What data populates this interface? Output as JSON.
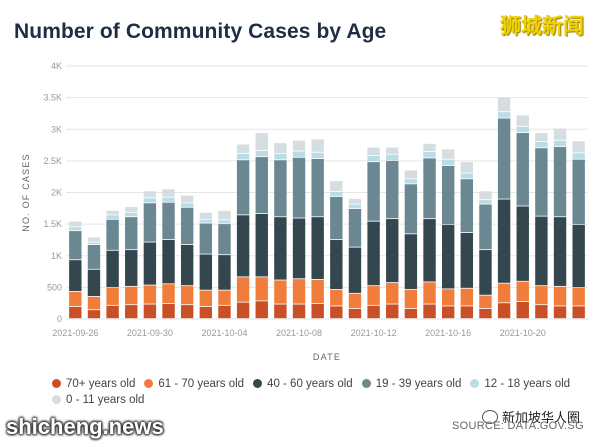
{
  "title": "Number of Community Cases by Age",
  "watermark_top": "狮城新闻",
  "watermark_bottom": "shicheng.news",
  "watermark_wechat": "新加坡华人圈",
  "source": "SOURCE: DATA.GOV.SG",
  "chart_data": {
    "type": "bar",
    "stacked": true,
    "title": "Number of Community Cases by Age",
    "xlabel": "DATE",
    "ylabel": "NO. OF CASES",
    "ylim": [
      0,
      4000
    ],
    "yticks": [
      "0",
      "500",
      "1K",
      "1.5K",
      "2K",
      "2.5K",
      "3K",
      "3.5K",
      "4K"
    ],
    "ytick_values": [
      0,
      500,
      1000,
      1500,
      2000,
      2500,
      3000,
      3500,
      4000
    ],
    "xtick_labels": [
      "2021-09-26",
      "2021-09-30",
      "2021-10-04",
      "2021-10-08",
      "2021-10-12",
      "2021-10-16",
      "2021-10-20"
    ],
    "xtick_index": [
      0,
      4,
      8,
      12,
      16,
      20,
      24
    ],
    "grid": true,
    "legend_position": "bottom",
    "categories": [
      "2021-09-26",
      "2021-09-27",
      "2021-09-28",
      "2021-09-29",
      "2021-09-30",
      "2021-10-01",
      "2021-10-02",
      "2021-10-03",
      "2021-10-04",
      "2021-10-05",
      "2021-10-06",
      "2021-10-07",
      "2021-10-08",
      "2021-10-09",
      "2021-10-10",
      "2021-10-11",
      "2021-10-12",
      "2021-10-13",
      "2021-10-14",
      "2021-10-15",
      "2021-10-16",
      "2021-10-17",
      "2021-10-18",
      "2021-10-19",
      "2021-10-20",
      "2021-10-21",
      "2021-10-22",
      "2021-10-23"
    ],
    "series": [
      {
        "name": "70+ years old",
        "color": "#c94f26",
        "values": [
          190,
          140,
          210,
          220,
          230,
          240,
          220,
          190,
          210,
          260,
          280,
          230,
          230,
          240,
          200,
          160,
          210,
          230,
          160,
          230,
          200,
          200,
          160,
          250,
          270,
          220,
          200,
          200
        ]
      },
      {
        "name": "61 - 70 years old",
        "color": "#f07d3c",
        "values": [
          240,
          210,
          280,
          290,
          300,
          310,
          300,
          260,
          240,
          400,
          380,
          380,
          400,
          380,
          260,
          240,
          310,
          340,
          300,
          350,
          270,
          280,
          210,
          310,
          320,
          300,
          310,
          290
        ]
      },
      {
        "name": "40 - 60 years old",
        "color": "#34474f",
        "values": [
          500,
          430,
          590,
          580,
          680,
          700,
          650,
          570,
          560,
          980,
          1000,
          1000,
          960,
          990,
          790,
          730,
          1020,
          1010,
          880,
          1000,
          1020,
          880,
          720,
          1330,
          1190,
          1100,
          1100,
          1000
        ]
      },
      {
        "name": "19 - 39 years old",
        "color": "#6a8792",
        "values": [
          460,
          390,
          490,
          520,
          620,
          590,
          590,
          490,
          490,
          870,
          900,
          900,
          960,
          920,
          680,
          610,
          940,
          920,
          790,
          960,
          930,
          850,
          720,
          1280,
          1160,
          1080,
          1110,
          1030
        ]
      },
      {
        "name": "12 - 18 years old",
        "color": "#b9dde6",
        "values": [
          60,
          40,
          70,
          70,
          80,
          80,
          70,
          60,
          60,
          100,
          100,
          100,
          100,
          100,
          80,
          70,
          100,
          100,
          80,
          100,
          100,
          90,
          70,
          100,
          100,
          100,
          100,
          100
        ]
      },
      {
        "name": "0 - 11 years old",
        "color": "#d6dde1",
        "values": [
          90,
          80,
          70,
          90,
          110,
          130,
          120,
          110,
          150,
          150,
          280,
          170,
          170,
          210,
          170,
          90,
          130,
          110,
          140,
          130,
          160,
          180,
          140,
          230,
          180,
          140,
          190,
          190
        ]
      }
    ]
  }
}
